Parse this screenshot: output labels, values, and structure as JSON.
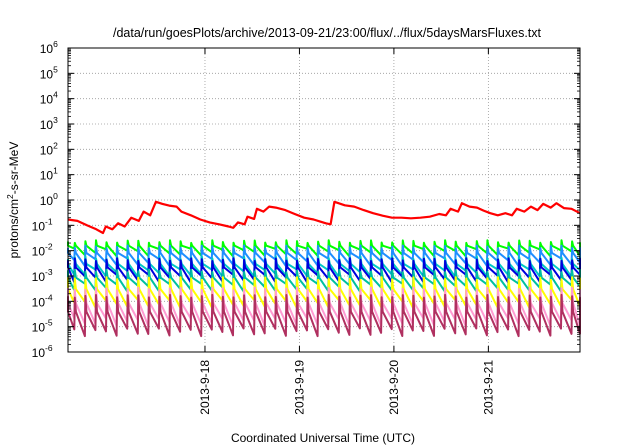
{
  "chart_data": {
    "type": "line",
    "title": "/data/run/goesPlots/archive/2013-09-21/23:00/flux/../flux/5daysMarsFluxes.txt",
    "xlabel": "Coordinated Universal Time (UTC)",
    "ylabel_parts": [
      "protons/cm",
      "2",
      "-s-sr-MeV"
    ],
    "y_scale": "log",
    "ylim_exp": [
      -6,
      6
    ],
    "y_tick_base": "10",
    "y_tick_exponents": [
      "-6",
      "-5",
      "-4",
      "-3",
      "-2",
      "-1",
      "0",
      "1",
      "2",
      "3",
      "4",
      "5",
      "6"
    ],
    "xlim_days": [
      16.55,
      21.97
    ],
    "x_ticks": [
      {
        "label": "2013-9-18",
        "day": 18
      },
      {
        "label": "2013-9-19",
        "day": 19
      },
      {
        "label": "2013-9-20",
        "day": 20
      },
      {
        "label": "2013-9-21",
        "day": 21
      }
    ],
    "grid": true,
    "top_series": {
      "color": "#ff0000",
      "points": [
        [
          16.55,
          0.17
        ],
        [
          16.65,
          0.15
        ],
        [
          16.75,
          0.1
        ],
        [
          16.85,
          0.07
        ],
        [
          16.92,
          0.05
        ],
        [
          16.95,
          0.09
        ],
        [
          17.02,
          0.07
        ],
        [
          17.08,
          0.12
        ],
        [
          17.15,
          0.09
        ],
        [
          17.22,
          0.2
        ],
        [
          17.3,
          0.15
        ],
        [
          17.35,
          0.35
        ],
        [
          17.42,
          0.25
        ],
        [
          17.48,
          0.85
        ],
        [
          17.55,
          0.7
        ],
        [
          17.62,
          0.6
        ],
        [
          17.7,
          0.55
        ],
        [
          17.75,
          0.35
        ],
        [
          17.85,
          0.25
        ],
        [
          17.95,
          0.17
        ],
        [
          18.05,
          0.13
        ],
        [
          18.15,
          0.11
        ],
        [
          18.25,
          0.09
        ],
        [
          18.3,
          0.08
        ],
        [
          18.35,
          0.13
        ],
        [
          18.42,
          0.11
        ],
        [
          18.45,
          0.22
        ],
        [
          18.52,
          0.18
        ],
        [
          18.55,
          0.45
        ],
        [
          18.62,
          0.35
        ],
        [
          18.68,
          0.55
        ],
        [
          18.75,
          0.5
        ],
        [
          18.85,
          0.4
        ],
        [
          18.95,
          0.28
        ],
        [
          19.05,
          0.2
        ],
        [
          19.15,
          0.17
        ],
        [
          19.22,
          0.14
        ],
        [
          19.28,
          0.12
        ],
        [
          19.33,
          0.11
        ],
        [
          19.37,
          0.85
        ],
        [
          19.48,
          0.62
        ],
        [
          19.58,
          0.55
        ],
        [
          19.68,
          0.4
        ],
        [
          19.78,
          0.3
        ],
        [
          19.88,
          0.24
        ],
        [
          19.98,
          0.2
        ],
        [
          20.08,
          0.2
        ],
        [
          20.18,
          0.19
        ],
        [
          20.28,
          0.2
        ],
        [
          20.38,
          0.22
        ],
        [
          20.48,
          0.28
        ],
        [
          20.55,
          0.25
        ],
        [
          20.6,
          0.45
        ],
        [
          20.68,
          0.35
        ],
        [
          20.72,
          0.75
        ],
        [
          20.8,
          0.55
        ],
        [
          20.88,
          0.5
        ],
        [
          20.95,
          0.38
        ],
        [
          21.02,
          0.3
        ],
        [
          21.1,
          0.25
        ],
        [
          21.18,
          0.3
        ],
        [
          21.25,
          0.25
        ],
        [
          21.3,
          0.45
        ],
        [
          21.38,
          0.35
        ],
        [
          21.45,
          0.55
        ],
        [
          21.52,
          0.4
        ],
        [
          21.58,
          0.7
        ],
        [
          21.66,
          0.5
        ],
        [
          21.72,
          0.75
        ],
        [
          21.8,
          0.48
        ],
        [
          21.88,
          0.45
        ],
        [
          21.97,
          0.3
        ]
      ]
    },
    "sawtooth_cycle_days": 0.112,
    "sawtooth_series": [
      {
        "color": "#00ff00",
        "high": 0.026,
        "low": 0.0085
      },
      {
        "color": "#1f8fff",
        "high": 0.016,
        "low": 0.0035
      },
      {
        "color": "#00c8c8",
        "high": 0.006,
        "low": 0.0013
      },
      {
        "color": "#0000dd",
        "high": 0.005,
        "low": 0.0008
      },
      {
        "color": "#00c0a0",
        "high": 0.0018,
        "low": 0.00035
      },
      {
        "color": "#ffff00",
        "high": 0.0009,
        "low": 8e-05
      },
      {
        "color": "#ff9bd2",
        "high": 0.00035,
        "low": 1.5e-05
      },
      {
        "color": "#b03060",
        "high": 0.00018,
        "low": 6e-06
      }
    ]
  }
}
